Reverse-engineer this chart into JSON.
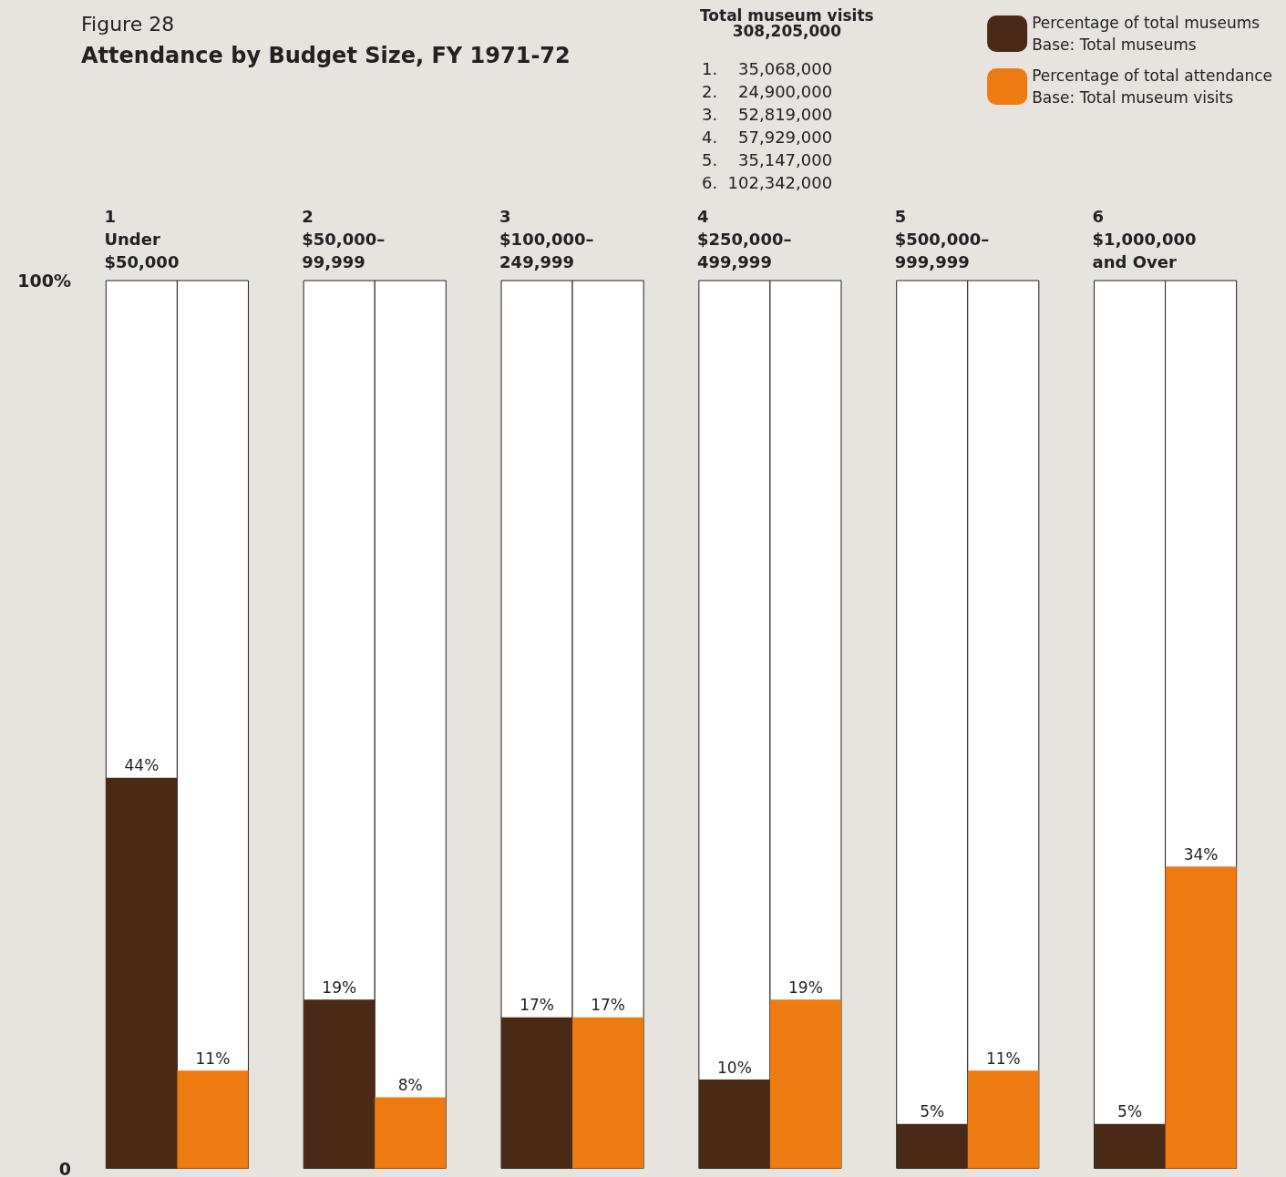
{
  "chart_data": {
    "type": "bar",
    "subtitle": "Figure 28",
    "title": "Attendance by Budget Size, FY 1971-72",
    "categories": [
      "1\nUnder\n$50,000",
      "2\n$50,000–\n99,999",
      "3\n$100,000–\n249,999",
      "4\n$250,000–\n499,999",
      "5\n$500,000–\n999,999",
      "6\n$1,000,000\nand Over"
    ],
    "series": [
      {
        "name": "Percentage of total museums\nBase: Total museums",
        "color": "#4a2a17",
        "values": [
          44,
          19,
          17,
          10,
          5,
          5
        ],
        "value_labels": [
          "44%",
          "19%",
          "17%",
          "10%",
          "5%",
          "5%"
        ]
      },
      {
        "name": "Percentage of total attendance\nBase: Total museum visits",
        "color": "#ee7a12",
        "values": [
          11,
          8,
          17,
          19,
          11,
          34
        ],
        "value_labels": [
          "11%",
          "8%",
          "17%",
          "19%",
          "11%",
          "34%"
        ]
      }
    ],
    "ylim": [
      0,
      100
    ],
    "yticks": [
      {
        "value": 0,
        "label": "0"
      },
      {
        "value": 100,
        "label": "100%"
      }
    ],
    "legend": "top right",
    "annotations": [
      "Total museum visits\n308,205,000",
      "1.    35,068,000",
      "2.    24,900,000",
      "3.    52,819,000",
      "4.    57,929,000",
      "5.    35,147,000",
      "6.  102,342,000"
    ]
  }
}
